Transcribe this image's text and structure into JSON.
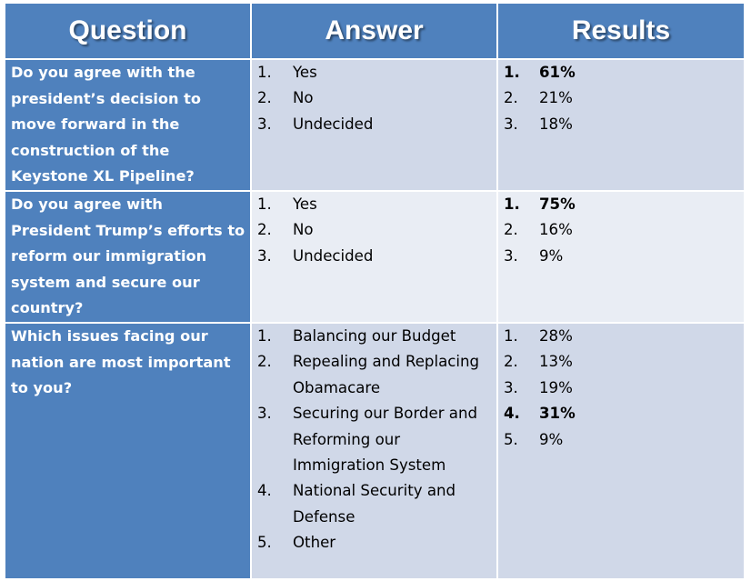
{
  "headers": {
    "question": "Question",
    "answer": "Answer",
    "results": "Results"
  },
  "rows": [
    {
      "question": "Do you agree with the president’s decision to move forward in the construction of the Keystone XL Pipeline?",
      "answers": [
        {
          "num": "1.",
          "text": "Yes"
        },
        {
          "num": "2.",
          "text": "No"
        },
        {
          "num": "3.",
          "text": "Undecided"
        }
      ],
      "results": [
        {
          "num": "1.",
          "text": "61%",
          "bold": true
        },
        {
          "num": "2.",
          "text": "21%",
          "bold": false
        },
        {
          "num": "3.",
          "text": "18%",
          "bold": false
        }
      ]
    },
    {
      "question": "Do you agree with President Trump’s efforts to reform our immigration system and secure our country?",
      "answers": [
        {
          "num": "1.",
          "text": "Yes"
        },
        {
          "num": "2.",
          "text": "No"
        },
        {
          "num": "3.",
          "text": "Undecided"
        }
      ],
      "results": [
        {
          "num": "1.",
          "text": "75%",
          "bold": true
        },
        {
          "num": "2.",
          "text": "16%",
          "bold": false
        },
        {
          "num": "3.",
          "text": "9%",
          "bold": false
        }
      ]
    },
    {
      "question": "Which issues facing our nation are most important to you?",
      "answers": [
        {
          "num": "1.",
          "text": "Balancing our Budget"
        },
        {
          "num": "2.",
          "text": "Repealing and Replacing Obamacare"
        },
        {
          "num": "3.",
          "text": "Securing our Border and Reforming our Immigration System"
        },
        {
          "num": "4.",
          "text": "National Security and Defense"
        },
        {
          "num": "5.",
          "text": "Other"
        }
      ],
      "results": [
        {
          "num": "1.",
          "text": "28%",
          "bold": false
        },
        {
          "num": "2.",
          "text": "13%",
          "bold": false
        },
        {
          "num": "3.",
          "text": "19%",
          "bold": false
        },
        {
          "num": "4.",
          "text": "31%",
          "bold": true
        },
        {
          "num": "5.",
          "text": "9%",
          "bold": false
        }
      ]
    }
  ],
  "colors": {
    "header_bg": "#4f81bd",
    "question_bg": "#4f81bd",
    "row_odd_bg": "#d0d8e8",
    "row_even_bg": "#e9edf4"
  }
}
